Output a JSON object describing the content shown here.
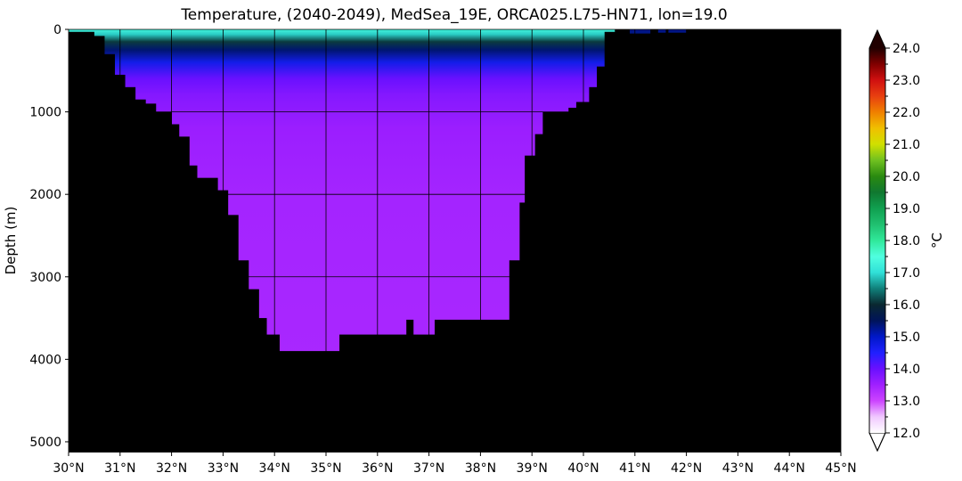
{
  "chart_data": {
    "type": "heatmap",
    "title": "Temperature, (2040-2049), MedSea_19E, ORCA025.L75-HN71, lon=19.0",
    "xlabel": "",
    "ylabel": "Depth (m)",
    "xlim": [
      30,
      45
    ],
    "ylim": [
      5130,
      0
    ],
    "x_ticks": [
      30,
      31,
      32,
      33,
      34,
      35,
      36,
      37,
      38,
      39,
      40,
      41,
      42,
      43,
      44,
      45
    ],
    "x_tick_labels": [
      "30°N",
      "31°N",
      "32°N",
      "33°N",
      "34°N",
      "35°N",
      "36°N",
      "37°N",
      "38°N",
      "39°N",
      "40°N",
      "41°N",
      "42°N",
      "43°N",
      "44°N",
      "45°N"
    ],
    "y_ticks": [
      0,
      1000,
      2000,
      3000,
      4000,
      5000
    ],
    "y_tick_labels": [
      "0",
      "1000",
      "2000",
      "3000",
      "4000",
      "5000"
    ],
    "grid": true,
    "land_color": "#000000",
    "colorbar": {
      "label": "°C",
      "min": 12.0,
      "max": 24.0,
      "extend": "both",
      "ticks": [
        12.0,
        13.0,
        14.0,
        15.0,
        16.0,
        17.0,
        18.0,
        19.0,
        20.0,
        21.0,
        22.0,
        23.0,
        24.0
      ],
      "tick_labels": [
        "12.0",
        "13.0",
        "14.0",
        "15.0",
        "16.0",
        "17.0",
        "18.0",
        "19.0",
        "20.0",
        "21.0",
        "22.0",
        "23.0",
        "24.0"
      ],
      "colors": [
        [
          12.0,
          "#ffffff"
        ],
        [
          12.5,
          "#f0c8ff"
        ],
        [
          13.0,
          "#cc44ff"
        ],
        [
          13.5,
          "#a020ff"
        ],
        [
          14.0,
          "#6a10ff"
        ],
        [
          14.5,
          "#2020ff"
        ],
        [
          15.0,
          "#0018c8"
        ],
        [
          15.5,
          "#00145a"
        ],
        [
          16.0,
          "#0a2830"
        ],
        [
          16.5,
          "#10807a"
        ],
        [
          17.0,
          "#30e0d8"
        ],
        [
          17.5,
          "#50ffe0"
        ],
        [
          18.0,
          "#30e89a"
        ],
        [
          18.5,
          "#20c070"
        ],
        [
          19.0,
          "#10a050"
        ],
        [
          19.5,
          "#107830"
        ],
        [
          20.0,
          "#2a8a10"
        ],
        [
          20.5,
          "#70c020"
        ],
        [
          21.0,
          "#d0e000"
        ],
        [
          21.5,
          "#f0c000"
        ],
        [
          22.0,
          "#f08000"
        ],
        [
          22.5,
          "#e84010"
        ],
        [
          23.0,
          "#d01010"
        ],
        [
          23.5,
          "#800000"
        ],
        [
          24.0,
          "#200000"
        ]
      ]
    },
    "water_section": {
      "temperature_profile": [
        {
          "depth": 0,
          "temp": 17.3
        },
        {
          "depth": 60,
          "temp": 16.9
        },
        {
          "depth": 150,
          "temp": 16.1
        },
        {
          "depth": 250,
          "temp": 15.4
        },
        {
          "depth": 400,
          "temp": 14.7
        },
        {
          "depth": 600,
          "temp": 14.0
        },
        {
          "depth": 800,
          "temp": 13.75
        },
        {
          "depth": 1200,
          "temp": 13.55
        },
        {
          "depth": 2000,
          "temp": 13.45
        },
        {
          "depth": 4000,
          "temp": 13.4
        }
      ],
      "columns": [
        {
          "lat_start": 30.0,
          "lat_end": 30.5,
          "bottom_depth": 30
        },
        {
          "lat_start": 30.5,
          "lat_end": 30.7,
          "bottom_depth": 80
        },
        {
          "lat_start": 30.7,
          "lat_end": 30.9,
          "bottom_depth": 300
        },
        {
          "lat_start": 30.9,
          "lat_end": 31.1,
          "bottom_depth": 550
        },
        {
          "lat_start": 31.1,
          "lat_end": 31.3,
          "bottom_depth": 700
        },
        {
          "lat_start": 31.3,
          "lat_end": 31.5,
          "bottom_depth": 850
        },
        {
          "lat_start": 31.5,
          "lat_end": 31.7,
          "bottom_depth": 900
        },
        {
          "lat_start": 31.7,
          "lat_end": 32.0,
          "bottom_depth": 1000
        },
        {
          "lat_start": 32.0,
          "lat_end": 32.15,
          "bottom_depth": 1150
        },
        {
          "lat_start": 32.15,
          "lat_end": 32.35,
          "bottom_depth": 1300
        },
        {
          "lat_start": 32.35,
          "lat_end": 32.5,
          "bottom_depth": 1650
        },
        {
          "lat_start": 32.5,
          "lat_end": 32.9,
          "bottom_depth": 1800
        },
        {
          "lat_start": 32.9,
          "lat_end": 33.1,
          "bottom_depth": 1950
        },
        {
          "lat_start": 33.1,
          "lat_end": 33.3,
          "bottom_depth": 2250
        },
        {
          "lat_start": 33.3,
          "lat_end": 33.5,
          "bottom_depth": 2800
        },
        {
          "lat_start": 33.5,
          "lat_end": 33.7,
          "bottom_depth": 3150
        },
        {
          "lat_start": 33.7,
          "lat_end": 33.85,
          "bottom_depth": 3500
        },
        {
          "lat_start": 33.85,
          "lat_end": 34.1,
          "bottom_depth": 3700
        },
        {
          "lat_start": 34.1,
          "lat_end": 35.25,
          "bottom_depth": 3900
        },
        {
          "lat_start": 35.25,
          "lat_end": 36.55,
          "bottom_depth": 3700
        },
        {
          "lat_start": 36.55,
          "lat_end": 36.7,
          "bottom_depth": 3520
        },
        {
          "lat_start": 36.7,
          "lat_end": 37.1,
          "bottom_depth": 3700
        },
        {
          "lat_start": 37.1,
          "lat_end": 38.55,
          "bottom_depth": 3520
        },
        {
          "lat_start": 38.55,
          "lat_end": 38.75,
          "bottom_depth": 2800
        },
        {
          "lat_start": 38.75,
          "lat_end": 38.85,
          "bottom_depth": 2100
        },
        {
          "lat_start": 38.85,
          "lat_end": 39.05,
          "bottom_depth": 1530
        },
        {
          "lat_start": 39.05,
          "lat_end": 39.2,
          "bottom_depth": 1270
        },
        {
          "lat_start": 39.2,
          "lat_end": 39.7,
          "bottom_depth": 1000
        },
        {
          "lat_start": 39.7,
          "lat_end": 39.85,
          "bottom_depth": 950
        },
        {
          "lat_start": 39.85,
          "lat_end": 40.1,
          "bottom_depth": 880
        },
        {
          "lat_start": 40.1,
          "lat_end": 40.25,
          "bottom_depth": 700
        },
        {
          "lat_start": 40.25,
          "lat_end": 40.4,
          "bottom_depth": 450
        },
        {
          "lat_start": 40.4,
          "lat_end": 40.6,
          "bottom_depth": 30
        }
      ],
      "surface_patches": [
        {
          "lat_start": 40.9,
          "lat_end": 41.3,
          "bottom_depth": 50,
          "temp": 15.3
        },
        {
          "lat_start": 41.45,
          "lat_end": 41.6,
          "bottom_depth": 40,
          "temp": 15.3
        },
        {
          "lat_start": 41.65,
          "lat_end": 42.0,
          "bottom_depth": 40,
          "temp": 15.3
        }
      ]
    }
  }
}
